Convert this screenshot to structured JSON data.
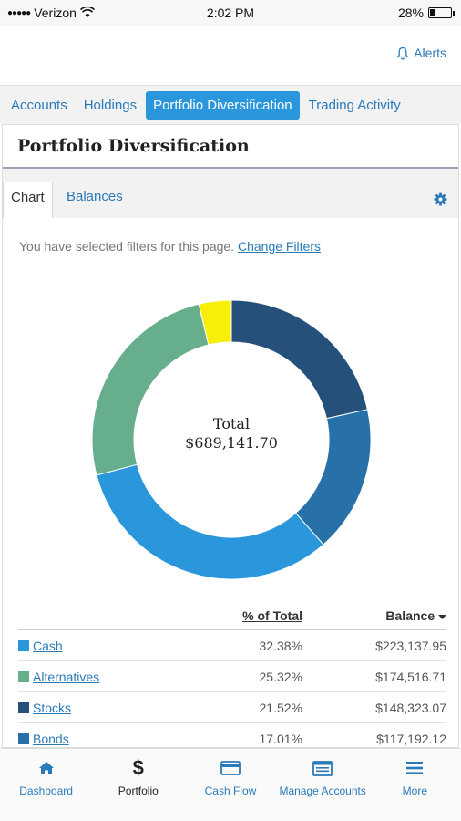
{
  "status_bar": {
    "carrier": "Verizon",
    "time": "2:02 PM",
    "battery_pct": "28%",
    "battery_level": 0.28
  },
  "header": {
    "alerts_label": "Alerts"
  },
  "main_tabs": [
    {
      "label": "Accounts",
      "active": false
    },
    {
      "label": "Holdings",
      "active": false
    },
    {
      "label": "Portfolio Diversification",
      "active": true
    },
    {
      "label": "Trading Activity",
      "active": false
    }
  ],
  "page": {
    "title": "Portfolio Diversification",
    "sub_tabs": [
      {
        "label": "Chart",
        "active": true
      },
      {
        "label": "Balances",
        "active": false
      }
    ],
    "filters_text": "You have selected filters for this page.",
    "filters_link": "Change Filters"
  },
  "chart_data": {
    "type": "pie",
    "center_label": "Total",
    "center_value": "$689,141.70",
    "slices": [
      {
        "name": "Stocks",
        "value": 21.52,
        "color": "#24507a"
      },
      {
        "name": "Bonds",
        "value": 17.01,
        "color": "#2870a8"
      },
      {
        "name": "Cash",
        "value": 32.38,
        "color": "#2a97dc"
      },
      {
        "name": "Alternatives",
        "value": 25.32,
        "color": "#66ae8c"
      },
      {
        "name": "",
        "value": 3.77,
        "color": "#f7ee0a"
      }
    ]
  },
  "table": {
    "col_pct": "% of Total",
    "col_balance": "Balance",
    "rows": [
      {
        "name": "Cash",
        "pct": "32.38%",
        "balance": "$223,137.95",
        "color": "#2a97dc"
      },
      {
        "name": "Alternatives",
        "pct": "25.32%",
        "balance": "$174,516.71",
        "color": "#66ae8c"
      },
      {
        "name": "Stocks",
        "pct": "21.52%",
        "balance": "$148,323.07",
        "color": "#24507a"
      },
      {
        "name": "Bonds",
        "pct": "17.01%",
        "balance": "$117,192.12",
        "color": "#2870a8"
      }
    ]
  },
  "bottom_nav": [
    {
      "label": "Dashboard",
      "icon": "home-icon",
      "active": false
    },
    {
      "label": "Portfolio",
      "icon": "dollar-icon",
      "active": true
    },
    {
      "label": "Cash Flow",
      "icon": "card-icon",
      "active": false
    },
    {
      "label": "Manage Accounts",
      "icon": "manage-accounts-icon",
      "active": false
    },
    {
      "label": "More",
      "icon": "menu-icon",
      "active": false
    }
  ]
}
